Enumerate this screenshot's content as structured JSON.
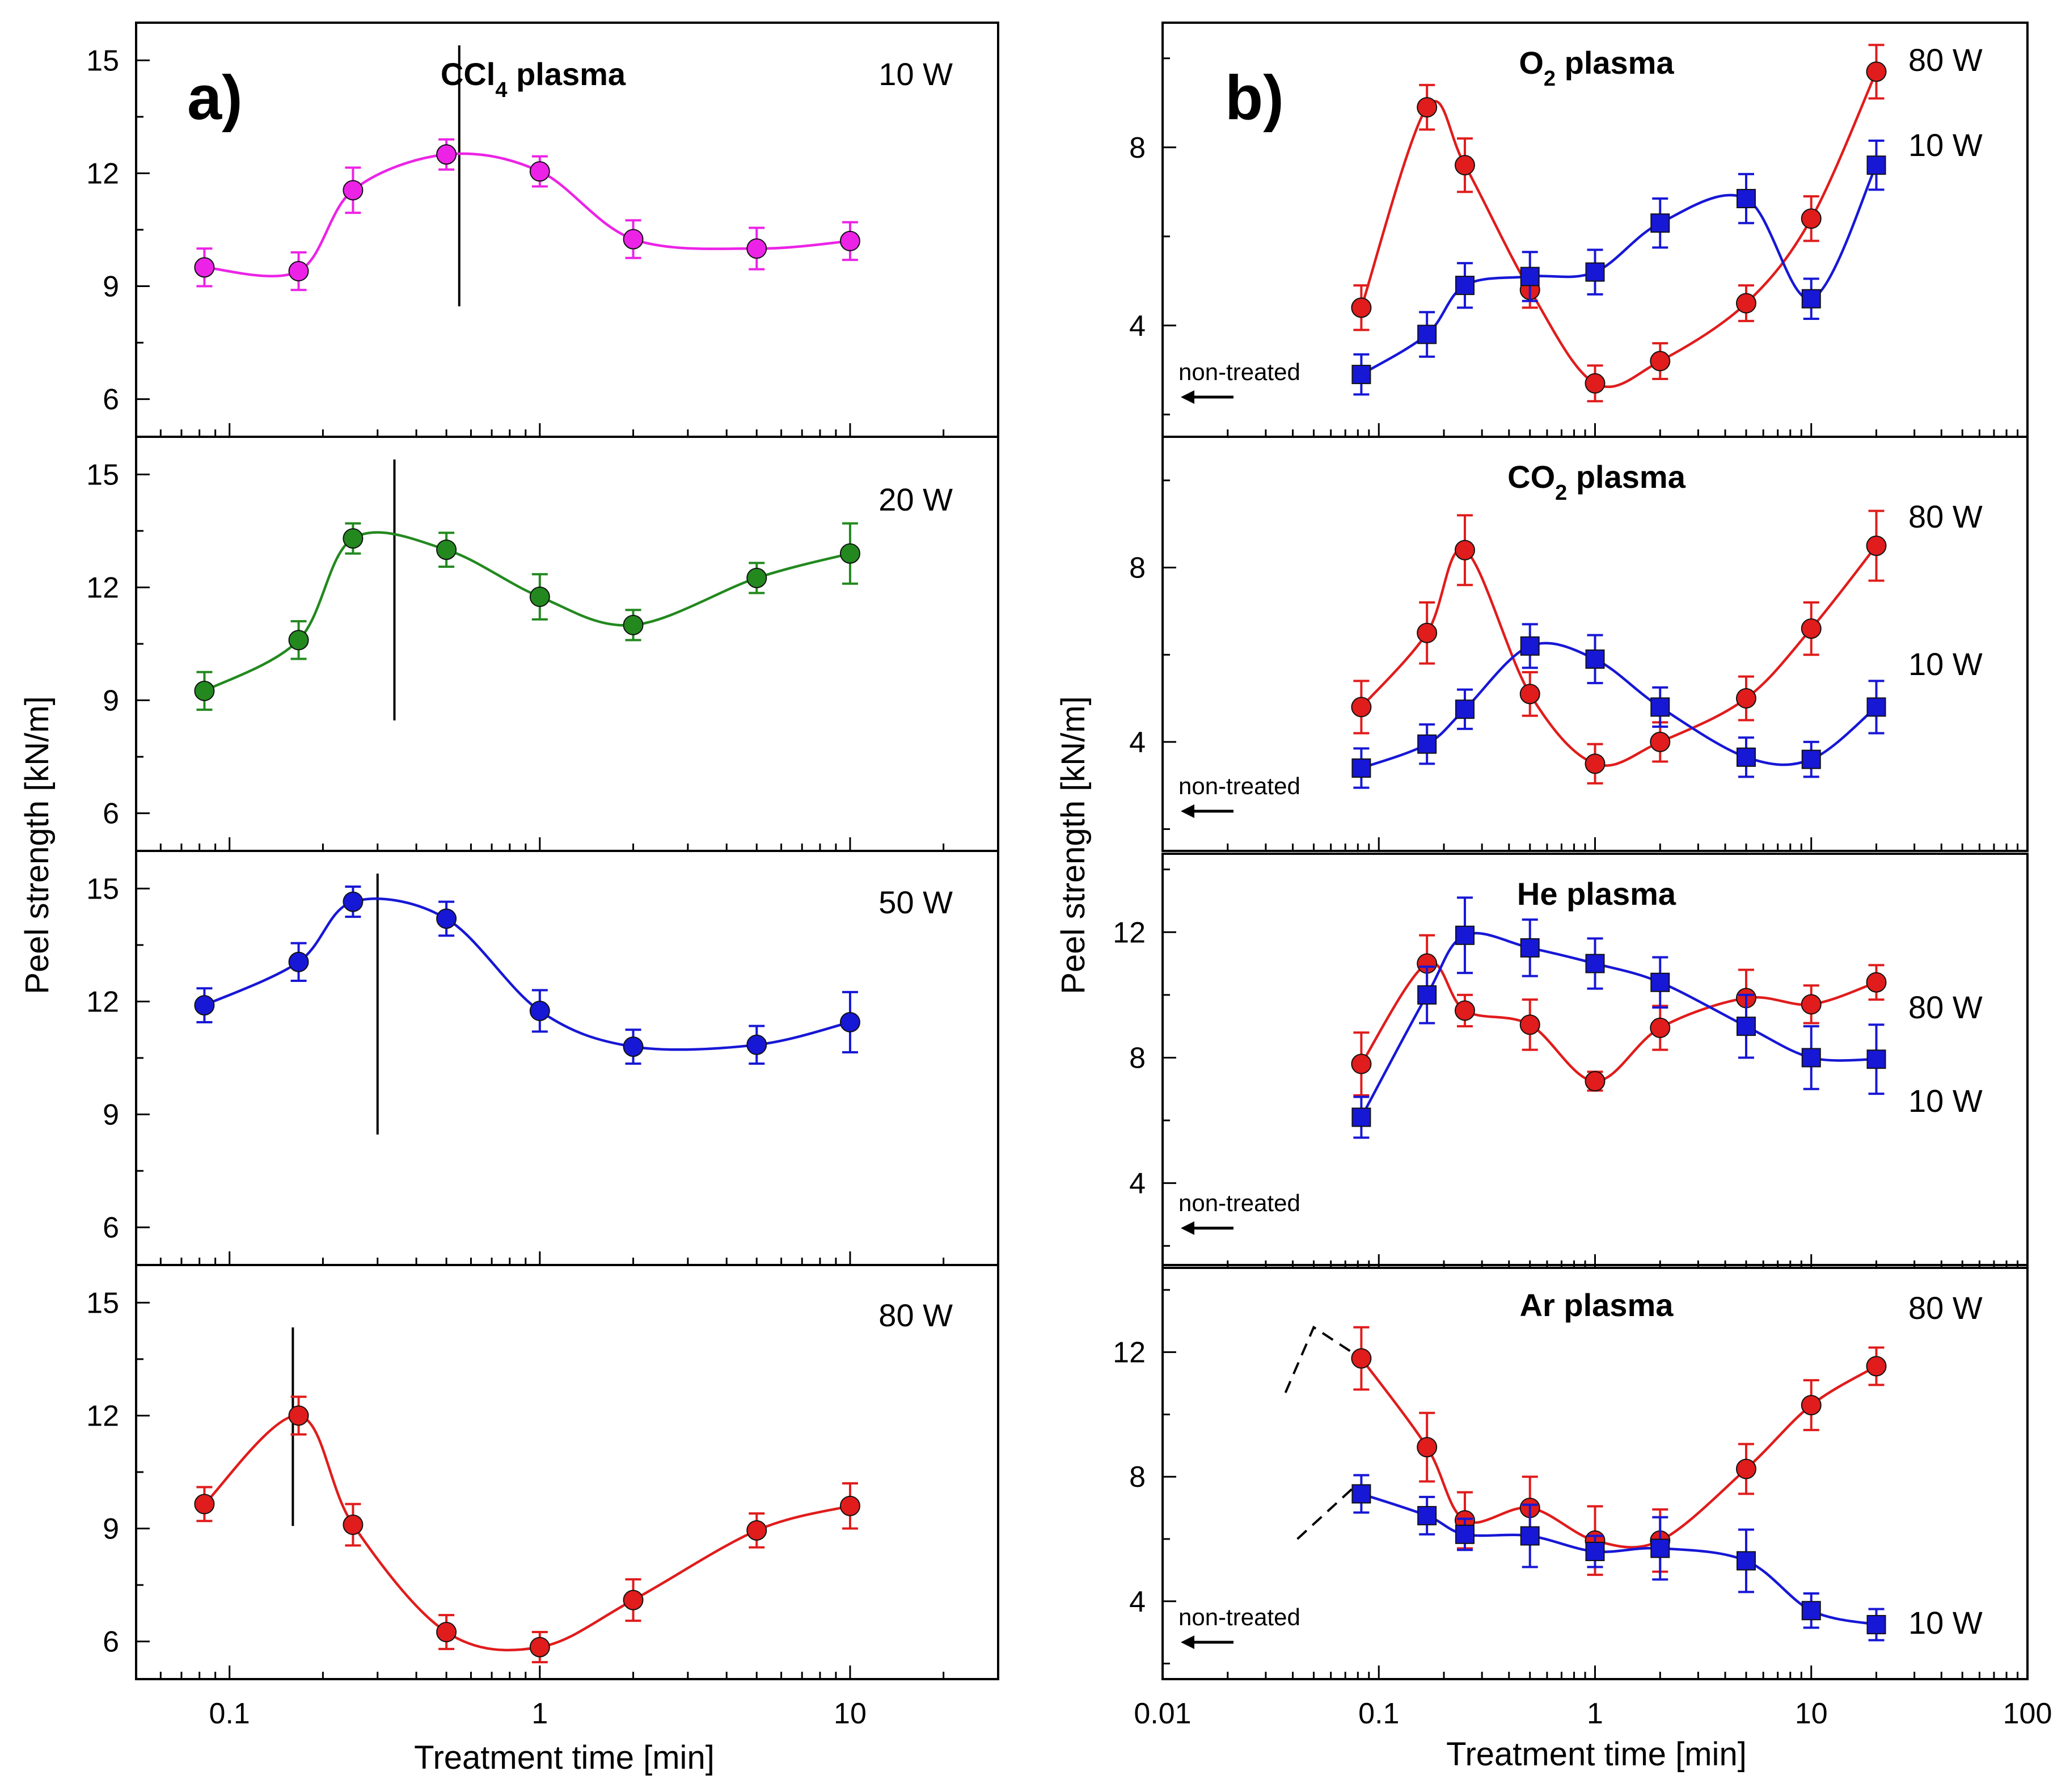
{
  "figure": {
    "ylabel": "Peel strength [kN/m]",
    "xlabel": "Treatment time [min]",
    "non_treated_label": "non-treated"
  },
  "chart_data": [
    {
      "panel": "a",
      "type": "line",
      "letter": "a)",
      "title": "CCl4 plasma",
      "title_parts": [
        "CCl",
        "4",
        " plasma"
      ],
      "xscale": "log",
      "xlim": [
        0.05,
        30
      ],
      "ylim": [
        5,
        16
      ],
      "xticks": [
        {
          "v": 0.1,
          "label": "0.1"
        },
        {
          "v": 1,
          "label": "1"
        },
        {
          "v": 10,
          "label": "10"
        }
      ],
      "yticks": [
        6,
        9,
        12,
        15
      ],
      "x": [
        0.083,
        0.167,
        0.25,
        0.5,
        1,
        2,
        5,
        10
      ],
      "rows": [
        {
          "power": "10 W",
          "color": "#ec23e6",
          "marker": "circle",
          "vline": 0.55,
          "values": [
            9.5,
            9.4,
            11.55,
            12.5,
            12.05,
            10.25,
            10.0,
            10.2
          ],
          "errors": [
            0.5,
            0.5,
            0.6,
            0.4,
            0.4,
            0.5,
            0.55,
            0.5
          ]
        },
        {
          "power": "20 W",
          "color": "#23891f",
          "marker": "circle",
          "vline": 0.34,
          "values": [
            9.25,
            10.6,
            13.3,
            13.0,
            11.75,
            11.0,
            12.25,
            12.9
          ],
          "errors": [
            0.5,
            0.5,
            0.4,
            0.45,
            0.6,
            0.4,
            0.4,
            0.8
          ]
        },
        {
          "power": "50 W",
          "color": "#1717d6",
          "marker": "circle",
          "vline": 0.3,
          "values": [
            11.9,
            13.05,
            14.65,
            14.2,
            11.75,
            10.8,
            10.85,
            11.45
          ],
          "errors": [
            0.45,
            0.5,
            0.4,
            0.45,
            0.55,
            0.45,
            0.5,
            0.8
          ]
        },
        {
          "power": "80 W",
          "color": "#e01c1c",
          "marker": "circle",
          "vline": 0.16,
          "values": [
            9.65,
            12.0,
            9.1,
            6.25,
            5.85,
            7.1,
            8.95,
            9.6
          ],
          "errors": [
            0.45,
            0.5,
            0.55,
            0.45,
            0.4,
            0.55,
            0.45,
            0.6
          ]
        }
      ]
    },
    {
      "panel": "b",
      "type": "line",
      "letter": "b)",
      "xscale": "log",
      "xlim": [
        0.01,
        100
      ],
      "xticks": [
        {
          "v": 0.01,
          "label": "0.01"
        },
        {
          "v": 0.1,
          "label": "0.1"
        },
        {
          "v": 1,
          "label": "1"
        },
        {
          "v": 10,
          "label": "10"
        },
        {
          "v": 100,
          "label": "100"
        }
      ],
      "x": [
        0.083,
        0.167,
        0.25,
        0.5,
        1,
        2,
        5,
        10,
        20
      ],
      "rows": [
        {
          "title": "O2 plasma",
          "title_parts": [
            "O",
            "2",
            " plasma"
          ],
          "ylim": [
            1.5,
            10.8
          ],
          "yticks": [
            4,
            8
          ],
          "series": [
            {
              "name": "80 W",
              "color": "#e01c1c",
              "marker": "circle",
              "values": [
                4.4,
                8.9,
                7.6,
                4.8,
                2.7,
                3.2,
                4.5,
                6.4,
                9.7
              ],
              "errors": [
                0.5,
                0.5,
                0.6,
                0.4,
                0.4,
                0.4,
                0.4,
                0.5,
                0.6
              ]
            },
            {
              "name": "10 W",
              "color": "#1717d6",
              "marker": "square",
              "values": [
                2.9,
                3.8,
                4.9,
                5.1,
                5.2,
                6.3,
                6.85,
                4.6,
                7.6
              ],
              "errors": [
                0.45,
                0.5,
                0.5,
                0.55,
                0.5,
                0.55,
                0.55,
                0.45,
                0.55
              ]
            }
          ]
        },
        {
          "title": "CO2 plasma",
          "title_parts": [
            "CO",
            "2",
            " plasma"
          ],
          "ylim": [
            1.5,
            11.0
          ],
          "yticks": [
            4,
            8
          ],
          "series": [
            {
              "name": "80 W",
              "color": "#e01c1c",
              "marker": "circle",
              "values": [
                4.8,
                6.5,
                8.4,
                5.1,
                3.5,
                4.0,
                5.0,
                6.6,
                8.5
              ],
              "errors": [
                0.6,
                0.7,
                0.8,
                0.5,
                0.45,
                0.45,
                0.5,
                0.6,
                0.8
              ]
            },
            {
              "name": "10 W",
              "color": "#1717d6",
              "marker": "square",
              "values": [
                3.4,
                3.95,
                4.75,
                6.2,
                5.9,
                4.8,
                3.65,
                3.6,
                4.8
              ],
              "errors": [
                0.45,
                0.45,
                0.45,
                0.5,
                0.55,
                0.45,
                0.45,
                0.4,
                0.6
              ]
            }
          ]
        },
        {
          "title": "He plasma",
          "title_parts": [
            "He plasma"
          ],
          "ylim": [
            1.3,
            14.5
          ],
          "yticks": [
            4,
            8,
            12
          ],
          "series": [
            {
              "name": "80 W",
              "color": "#e01c1c",
              "marker": "circle",
              "values": [
                7.8,
                11.0,
                9.5,
                9.05,
                7.25,
                8.95,
                9.9,
                9.7,
                10.4
              ],
              "errors": [
                1.0,
                0.9,
                0.5,
                0.8,
                0.3,
                0.7,
                0.9,
                0.6,
                0.55
              ]
            },
            {
              "name": "10 W",
              "color": "#1717d6",
              "marker": "square",
              "values": [
                6.1,
                10.0,
                11.9,
                11.5,
                11.0,
                10.4,
                9.0,
                8.0,
                7.95
              ],
              "errors": [
                0.65,
                0.9,
                1.2,
                0.9,
                0.8,
                0.8,
                1.0,
                1.0,
                1.1
              ]
            }
          ]
        },
        {
          "title": "Ar plasma",
          "title_parts": [
            "Ar plasma"
          ],
          "ylim": [
            1.5,
            14.8
          ],
          "yticks": [
            4,
            8,
            12
          ],
          "series": [
            {
              "name": "80 W",
              "color": "#e01c1c",
              "marker": "circle",
              "values": [
                11.8,
                8.95,
                6.6,
                7.0,
                5.95,
                5.95,
                8.25,
                10.3,
                11.55
              ],
              "errors": [
                1.0,
                1.1,
                0.9,
                1.0,
                1.1,
                1.0,
                0.8,
                0.8,
                0.6
              ]
            },
            {
              "name": "10 W",
              "color": "#1717d6",
              "marker": "square",
              "values": [
                7.45,
                6.75,
                6.15,
                6.1,
                5.6,
                5.7,
                5.3,
                3.7,
                3.25
              ],
              "errors": [
                0.6,
                0.6,
                0.5,
                1.0,
                0.5,
                1.0,
                1.0,
                0.55,
                0.5
              ]
            }
          ]
        }
      ]
    }
  ]
}
